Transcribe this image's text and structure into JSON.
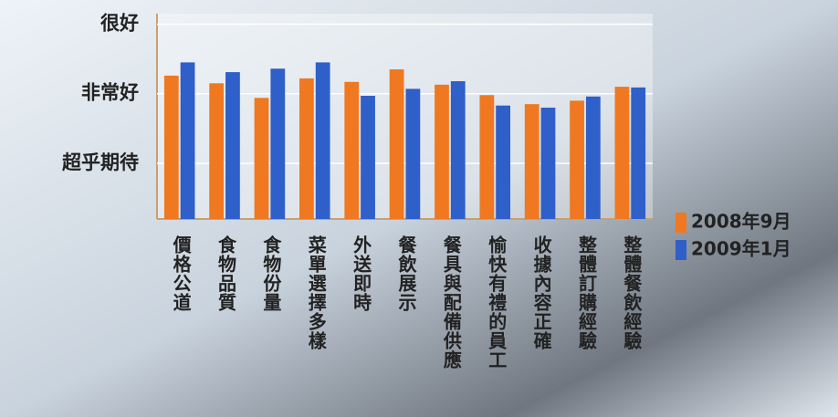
{
  "chart_data": {
    "type": "bar",
    "categories": [
      "價格公道",
      "食物品質",
      "食物份量",
      "菜單選擇多樣",
      "外送即時",
      "餐飲展示",
      "餐具與配備供應",
      "愉快有禮的員工",
      "收據內容正確",
      "整體訂購經驗",
      "整體餐飲經驗"
    ],
    "series": [
      {
        "name": "2008年9月",
        "color": "#f07820",
        "values": [
          4.26,
          4.15,
          3.94,
          4.22,
          4.17,
          4.35,
          4.13,
          3.98,
          3.85,
          3.9,
          4.1
        ]
      },
      {
        "name": "2009年1月",
        "color": "#2f5fc8",
        "values": [
          4.45,
          4.31,
          4.36,
          4.45,
          3.97,
          4.07,
          4.18,
          3.83,
          3.8,
          3.96,
          4.09
        ]
      }
    ],
    "ylim": [
      2.2,
      5.15
    ],
    "yticks": [
      {
        "value": 3,
        "label": "超乎期待"
      },
      {
        "value": 4,
        "label": "非常好"
      },
      {
        "value": 5,
        "label": "很好"
      }
    ],
    "grid": true,
    "legend": "right"
  }
}
